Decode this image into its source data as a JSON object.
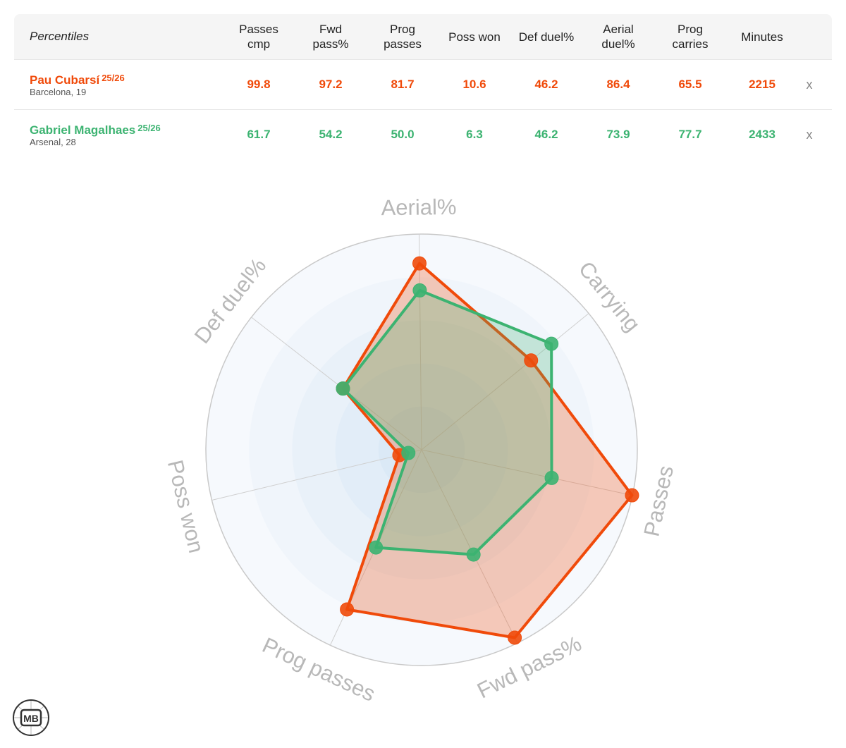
{
  "table": {
    "title": "Percentiles",
    "columns": [
      {
        "line1": "Passes",
        "line2": "cmp"
      },
      {
        "line1": "Fwd",
        "line2": "pass%"
      },
      {
        "line1": "Prog",
        "line2": "passes"
      },
      {
        "line1": "Poss won",
        "line2": ""
      },
      {
        "line1": "Def duel%",
        "line2": ""
      },
      {
        "line1": "Aerial",
        "line2": "duel%"
      },
      {
        "line1": "Prog",
        "line2": "carries"
      },
      {
        "line1": "Minutes",
        "line2": ""
      }
    ],
    "players": [
      {
        "name": "Pau Cubarsí",
        "season": "25/26",
        "sub": "Barcelona, 19",
        "color": "#f04a0a",
        "values": [
          "99.8",
          "97.2",
          "81.7",
          "10.6",
          "46.2",
          "86.4",
          "65.5",
          "2215"
        ],
        "remove": "x"
      },
      {
        "name": "Gabriel Magalhaes",
        "season": "25/26",
        "sub": "Arsenal, 28",
        "color": "#3cb371",
        "values": [
          "61.7",
          "54.2",
          "50.0",
          "6.3",
          "46.2",
          "73.9",
          "77.7",
          "2433"
        ],
        "remove": "x"
      }
    ]
  },
  "chart_data": {
    "type": "radar",
    "axes": [
      "Passes",
      "Fwd pass%",
      "Prog passes",
      "Poss won",
      "Def duel%",
      "Aerial%",
      "Carrying"
    ],
    "range": [
      0,
      100
    ],
    "series": [
      {
        "name": "Pau Cubarsí",
        "color": "#f04a0a",
        "values": [
          99.8,
          97.2,
          81.7,
          10.6,
          46.2,
          86.4,
          65.5
        ]
      },
      {
        "name": "Gabriel Magalhaes",
        "color": "#3cb371",
        "values": [
          61.7,
          54.2,
          50.0,
          6.3,
          46.2,
          73.9,
          77.7
        ]
      }
    ]
  },
  "logo": {
    "text": "MB"
  }
}
